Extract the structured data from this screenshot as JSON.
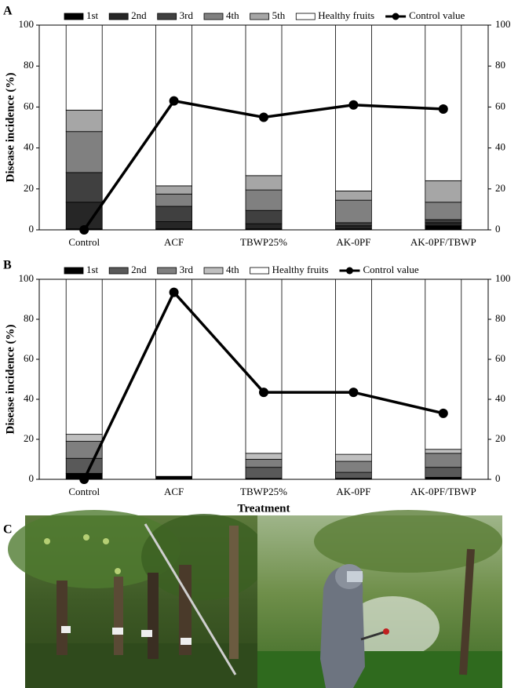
{
  "chart_data": [
    {
      "type": "bar",
      "label": "A",
      "stacked": true,
      "ylabel": "Disease incidence (%)",
      "categories": [
        "Control",
        "ACF",
        "TBWP25%",
        "AK-0PF",
        "AK-0PF/TBWP"
      ],
      "series": [
        {
          "name": "1st",
          "color": "#000000",
          "values": [
            0.5,
            0.5,
            0.5,
            0.5,
            2
          ]
        },
        {
          "name": "2nd",
          "color": "#262626",
          "values": [
            13,
            3.5,
            2.5,
            1.5,
            1.5
          ]
        },
        {
          "name": "3rd",
          "color": "#404040",
          "values": [
            14.5,
            7.5,
            6.5,
            1.5,
            1.5
          ]
        },
        {
          "name": "4th",
          "color": "#808080",
          "values": [
            20,
            6,
            10,
            11,
            8.5
          ]
        },
        {
          "name": "5th",
          "color": "#a6a6a6",
          "values": [
            10.5,
            4,
            7,
            4.5,
            10.5
          ]
        },
        {
          "name": "Healthy fruits",
          "color": "#ffffff",
          "values": [
            41.5,
            78.5,
            73.5,
            81,
            76
          ]
        },
        {
          "name": "Control value",
          "color": "#000000",
          "axis": "y2",
          "values": [
            0,
            63,
            55,
            61,
            59
          ]
        }
      ],
      "ylim": [
        0,
        100
      ],
      "yticks": [
        0,
        20,
        40,
        60,
        80,
        100
      ],
      "y2lim": [
        0,
        100
      ],
      "y2ticks": [
        0,
        20,
        40,
        60,
        80,
        100
      ]
    },
    {
      "type": "bar",
      "label": "B",
      "stacked": true,
      "ylabel": "Disease incidence (%)",
      "xlabel": "Treatment",
      "categories": [
        "Control",
        "ACF",
        "TBWP25%",
        "AK-0PF",
        "AK-0PF/TBWP"
      ],
      "series": [
        {
          "name": "1st",
          "color": "#000000",
          "values": [
            3,
            1.5,
            0.5,
            0.5,
            1
          ]
        },
        {
          "name": "2nd",
          "color": "#595959",
          "values": [
            7.5,
            0,
            5.5,
            3,
            5
          ]
        },
        {
          "name": "3rd",
          "color": "#7f7f7f",
          "values": [
            8.5,
            0,
            4,
            5.5,
            7
          ]
        },
        {
          "name": "4th",
          "color": "#bfbfbf",
          "values": [
            3.5,
            0,
            3,
            3.5,
            2
          ]
        },
        {
          "name": "Healthy fruits",
          "color": "#ffffff",
          "values": [
            77.5,
            98.5,
            87,
            87.5,
            85
          ]
        },
        {
          "name": "Control value",
          "color": "#000000",
          "axis": "y2",
          "values": [
            0,
            93.5,
            43.5,
            43.5,
            33
          ]
        }
      ],
      "ylim": [
        0,
        100
      ],
      "yticks": [
        0,
        20,
        40,
        60,
        80,
        100
      ],
      "y2lim": [
        0,
        100
      ],
      "y2ticks": [
        0,
        20,
        40,
        60,
        80,
        100
      ]
    }
  ],
  "photo_panel": {
    "label": "C"
  }
}
